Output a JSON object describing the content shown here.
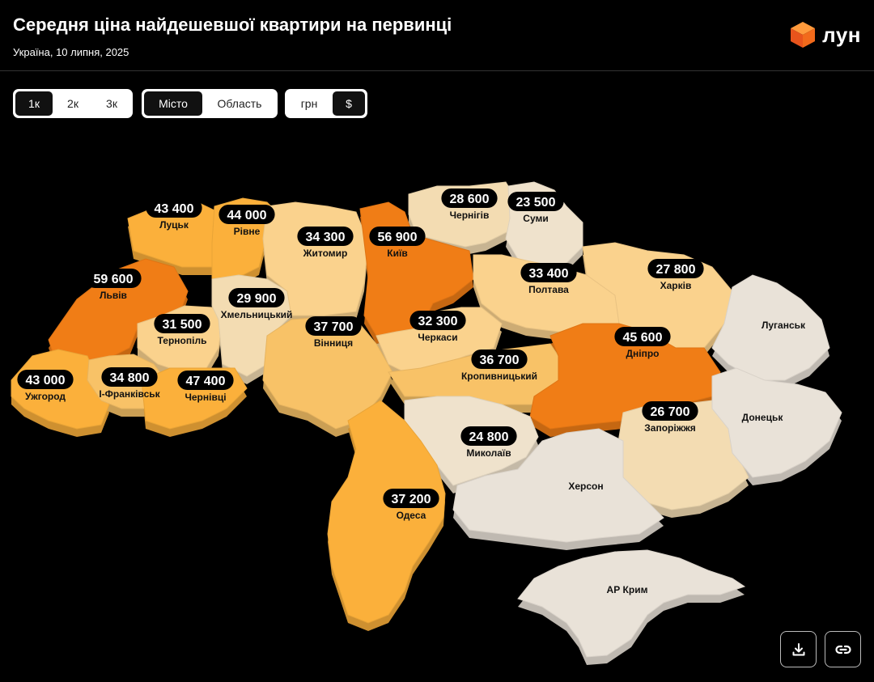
{
  "header": {
    "title": "Середня ціна найдешевшої квартири на первинці",
    "subtitle": "Україна, 10 липня, 2025",
    "brand": "ЛУН"
  },
  "controls": {
    "rooms": [
      {
        "label": "1к",
        "active": true
      },
      {
        "label": "2к",
        "active": false
      },
      {
        "label": "3к",
        "active": false
      }
    ],
    "scope": [
      {
        "label": "Місто",
        "active": true
      },
      {
        "label": "Область",
        "active": false
      }
    ],
    "currency": [
      {
        "label": "грн",
        "active": false
      },
      {
        "label": "$",
        "active": true
      }
    ]
  },
  "colors": {
    "high": "#f07d16",
    "high_dark": "#e8661b",
    "mid": "#fbb03b",
    "mid_light": "#f8c267",
    "low": "#fad28d",
    "lower": "#f3dcb2",
    "lowest": "#efe2cc",
    "none": "#e9e2d8",
    "badge_bg": "#000000",
    "badge_text": "#ffffff"
  },
  "regions": [
    {
      "id": "lutsk",
      "city": "Луцьк",
      "price": "43 400"
    },
    {
      "id": "rivne",
      "city": "Рівне",
      "price": "44 000"
    },
    {
      "id": "lviv",
      "city": "Львів",
      "price": "59 600"
    },
    {
      "id": "ternopil",
      "city": "Тернопіль",
      "price": "31 500"
    },
    {
      "id": "khmelnytskyi",
      "city": "Хмельницький",
      "price": "29 900"
    },
    {
      "id": "zhytomyr",
      "city": "Житомир",
      "price": "34 300"
    },
    {
      "id": "kyiv",
      "city": "Київ",
      "price": "56 900"
    },
    {
      "id": "chernihiv",
      "city": "Чернігів",
      "price": "28 600"
    },
    {
      "id": "sumy",
      "city": "Суми",
      "price": "23 500"
    },
    {
      "id": "poltava",
      "city": "Полтава",
      "price": "33 400"
    },
    {
      "id": "kharkiv",
      "city": "Харків",
      "price": "27 800"
    },
    {
      "id": "uzhhorod",
      "city": "Ужгород",
      "price": "43 000"
    },
    {
      "id": "ifrankivsk",
      "city": "І-Франківськ",
      "price": "34 800"
    },
    {
      "id": "chernivtsi",
      "city": "Чернівці",
      "price": "47 400"
    },
    {
      "id": "vinnytsia",
      "city": "Вінниця",
      "price": "37 700"
    },
    {
      "id": "cherkasy",
      "city": "Черкаси",
      "price": "32 300"
    },
    {
      "id": "kropyvnytskyi",
      "city": "Кропивницький",
      "price": "36 700"
    },
    {
      "id": "dnipro",
      "city": "Дніпро",
      "price": "45 600"
    },
    {
      "id": "zaporizhzhia",
      "city": "Запоріжжя",
      "price": "26 700"
    },
    {
      "id": "mykolaiv",
      "city": "Миколаїв",
      "price": "24 800"
    },
    {
      "id": "odesa",
      "city": "Одеса",
      "price": "37 200"
    },
    {
      "id": "luhansk",
      "city": "Луганськ",
      "price": ""
    },
    {
      "id": "donetsk",
      "city": "Донецьк",
      "price": ""
    },
    {
      "id": "kherson",
      "city": "Херсон",
      "price": ""
    },
    {
      "id": "crimea",
      "city": "АР Крим",
      "price": ""
    }
  ],
  "actions": {
    "download_icon": "download-icon",
    "link_icon": "link-icon"
  }
}
